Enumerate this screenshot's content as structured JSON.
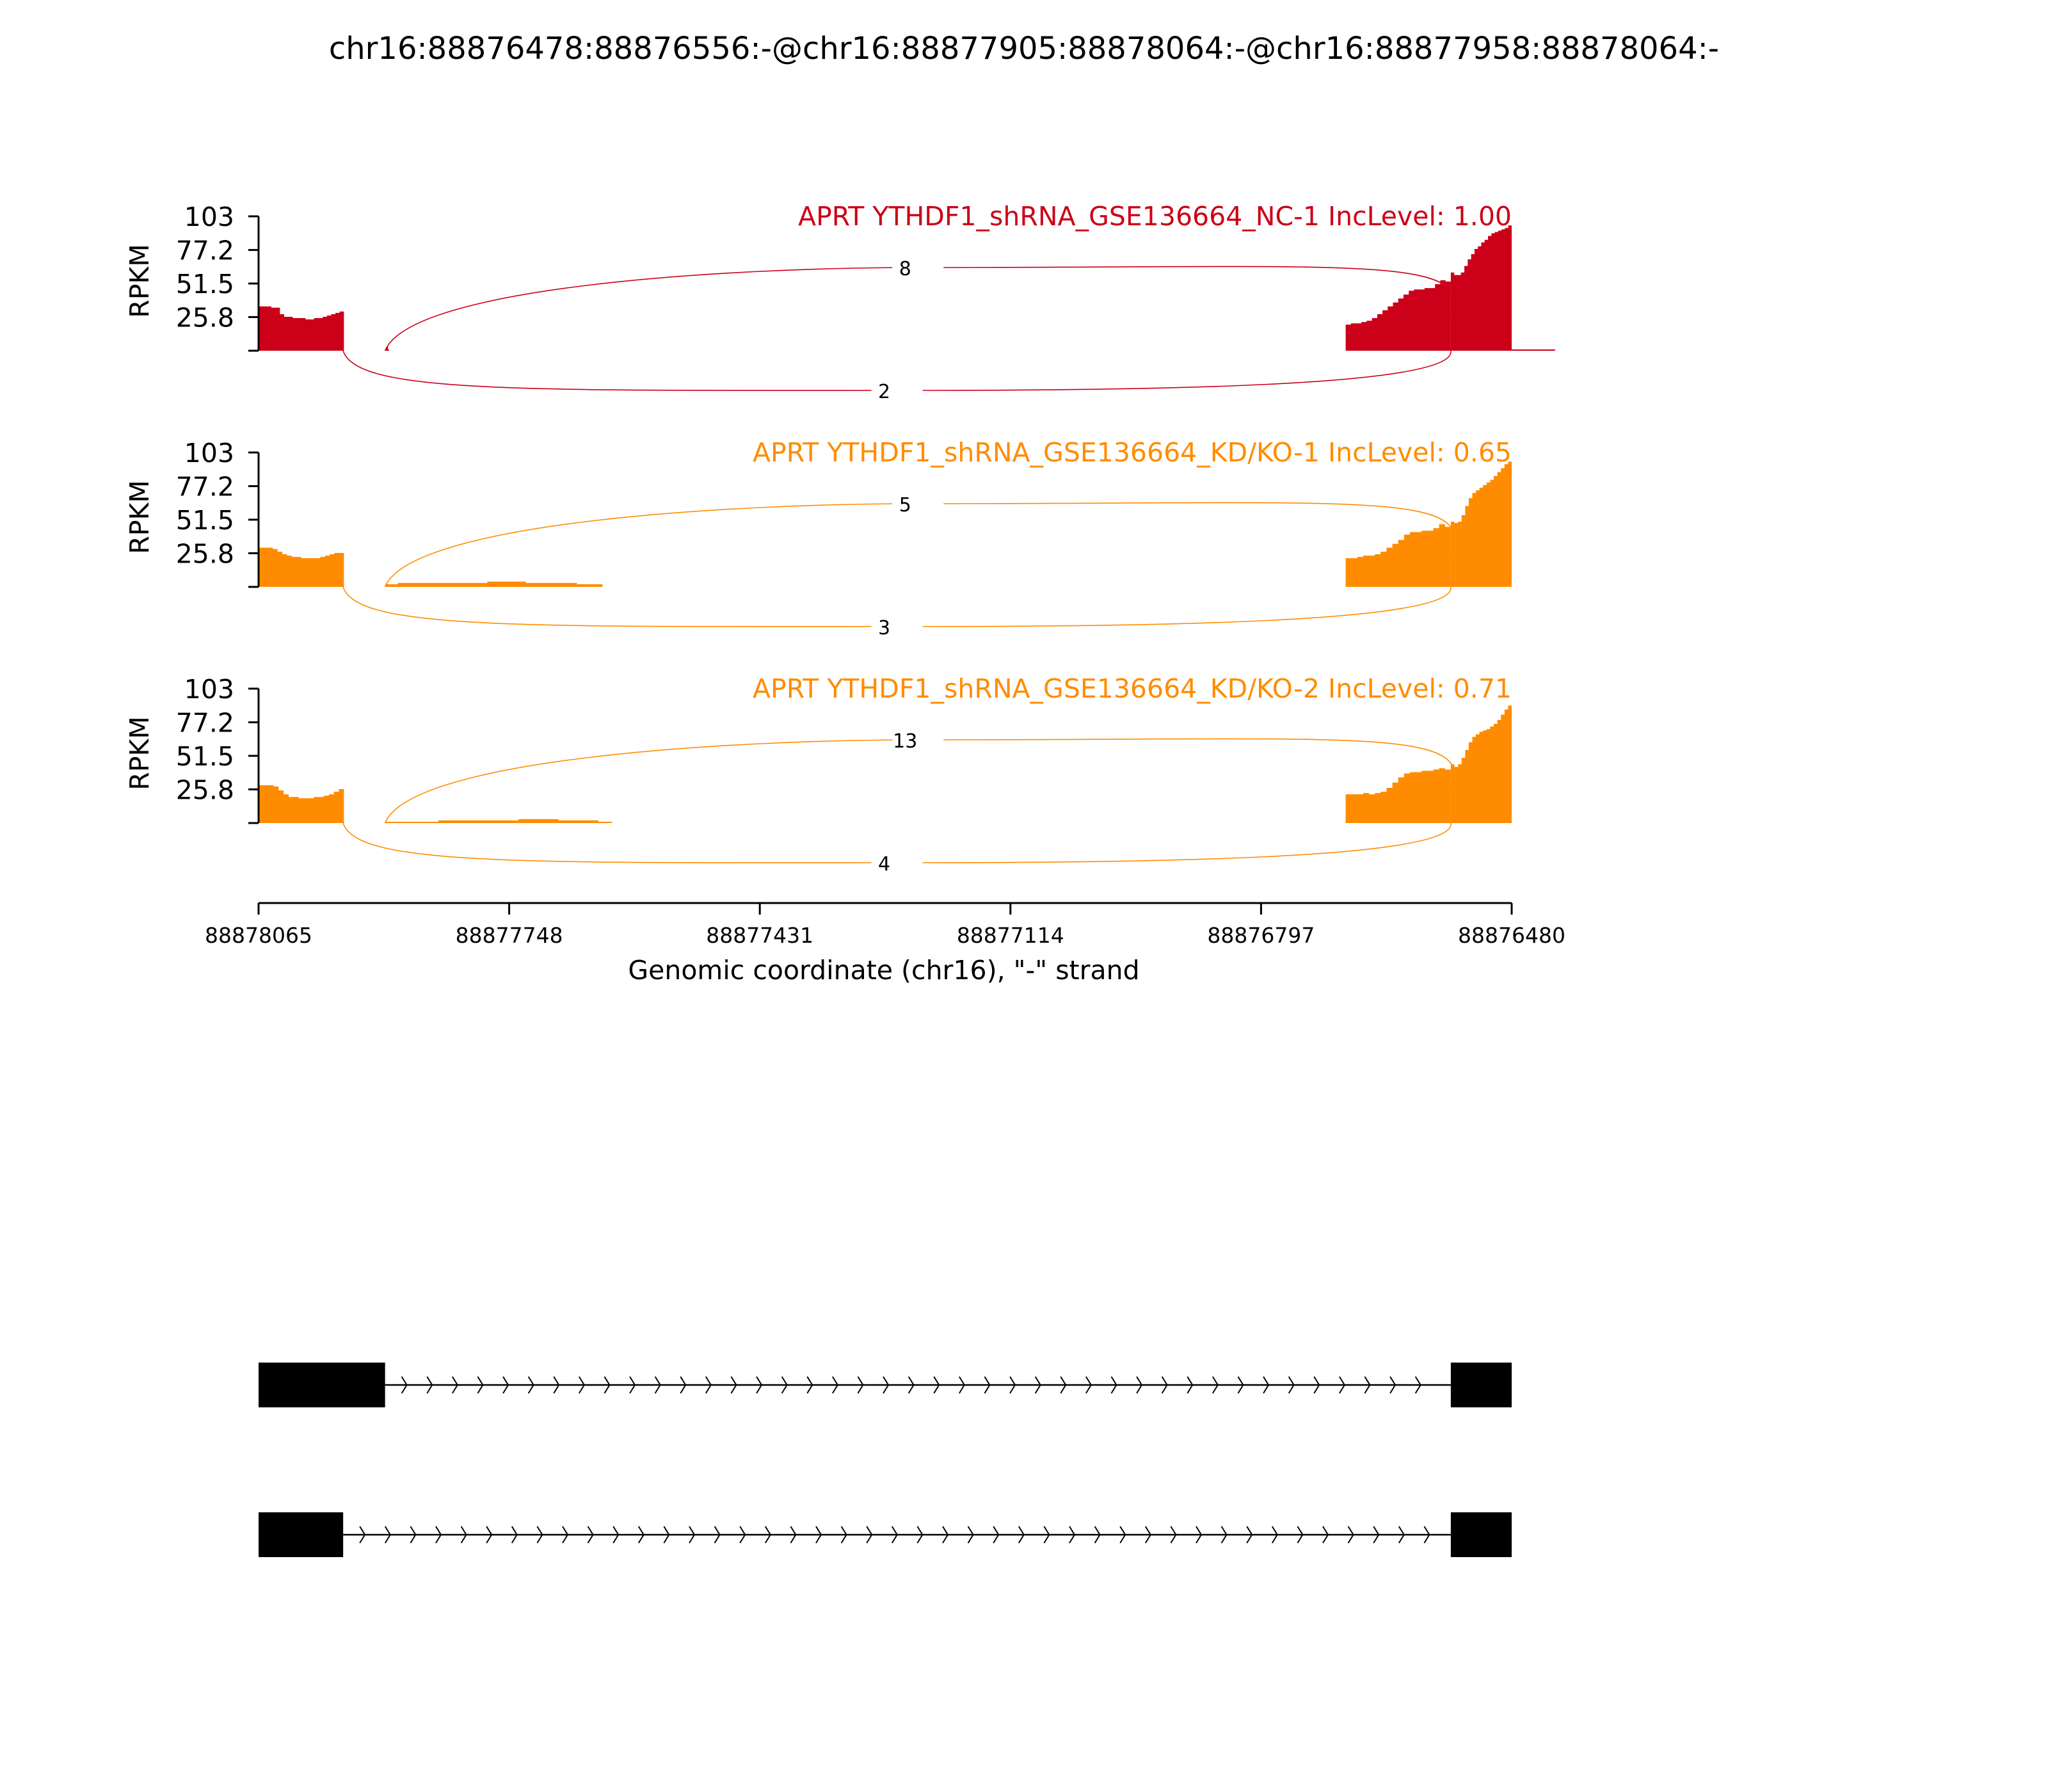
{
  "chart_data": {
    "type": "area",
    "title": "chr16:88876478:88876556:-@chr16:88877905:88878064:-@chr16:88877958:88878064:-",
    "xlabel": "Genomic coordinate (chr16), \"-\" strand",
    "x_range": [
      88878065,
      88876480
    ],
    "x_reversed": true,
    "x_ticks": [
      "88878065",
      "88877748",
      "88877431",
      "88877114",
      "88876797",
      "88876480"
    ],
    "ylabel": "RPKM",
    "y_range": [
      0,
      103
    ],
    "y_ticks": [
      "25.8",
      "51.5",
      "77.2",
      "103"
    ],
    "panels": [
      {
        "gene": "APRT",
        "sample": "YTHDF1_shRNA_GSE136664_NC-1",
        "inc_level_label": "IncLevel: 1.00",
        "color": "#CC0018",
        "segments": [
          {
            "start": 88878065,
            "end": 88877957,
            "values": [
              34,
              34,
              34,
              33,
              33,
              28,
              26,
              26,
              25,
              25,
              25,
              24,
              24,
              25,
              25,
              26,
              27,
              28,
              29,
              30
            ]
          },
          {
            "start": 88877905,
            "end": 88877900,
            "values": [
              1,
              2,
              3,
              1
            ]
          },
          {
            "start": 88876557,
            "end": 88876425,
            "values": [
              1,
              1,
              1,
              1,
              1,
              1,
              1,
              1
            ]
          },
          {
            "start": 88876690,
            "end": 88876557,
            "values": [
              20,
              21,
              21,
              22,
              23,
              25,
              28,
              31,
              34,
              37,
              40,
              43,
              46,
              47,
              47,
              48,
              48,
              51,
              54,
              53
            ]
          },
          {
            "start": 88876557,
            "end": 88876480,
            "values": [
              60,
              58,
              58,
              60,
              65,
              70,
              74,
              78,
              80,
              83,
              85,
              88,
              90,
              91,
              92,
              93,
              94,
              96
            ]
          }
        ],
        "junctions": [
          {
            "label": "8",
            "from": 88877905,
            "to": 88876557,
            "side": "above"
          },
          {
            "label": "2",
            "from": 88877958,
            "to": 88876557,
            "side": "below"
          }
        ]
      },
      {
        "gene": "APRT",
        "sample": "YTHDF1_shRNA_GSE136664_KD/KO-1",
        "inc_level_label": "IncLevel: 0.65",
        "color": "#FF8C00",
        "segments": [
          {
            "start": 88878065,
            "end": 88877957,
            "values": [
              30,
              30,
              30,
              29,
              27,
              25,
              24,
              23,
              23,
              22,
              22,
              22,
              22,
              23,
              24,
              25,
              26,
              26
            ]
          },
          {
            "start": 88877905,
            "end": 88877630,
            "values": [
              2,
              3,
              3,
              3,
              3,
              3,
              3,
              3,
              4,
              4,
              4,
              3,
              3,
              3,
              3,
              2,
              2
            ]
          },
          {
            "start": 88876690,
            "end": 88876557,
            "values": [
              22,
              22,
              23,
              24,
              24,
              25,
              27,
              30,
              33,
              36,
              40,
              42,
              42,
              43,
              43,
              45,
              48,
              46
            ]
          },
          {
            "start": 88876557,
            "end": 88876480,
            "values": [
              50,
              49,
              50,
              55,
              62,
              68,
              72,
              74,
              76,
              78,
              80,
              82,
              85,
              88,
              91,
              94,
              96
            ]
          }
        ],
        "junctions": [
          {
            "label": "5",
            "from": 88877905,
            "to": 88876557,
            "side": "above"
          },
          {
            "label": "3",
            "from": 88877958,
            "to": 88876557,
            "side": "below"
          }
        ]
      },
      {
        "gene": "APRT",
        "sample": "YTHDF1_shRNA_GSE136664_KD/KO-2",
        "inc_level_label": "IncLevel: 0.71",
        "color": "#FF8C00",
        "segments": [
          {
            "start": 88878065,
            "end": 88877957,
            "values": [
              29,
              29,
              29,
              28,
              25,
              22,
              20,
              20,
              19,
              19,
              19,
              20,
              20,
              21,
              22,
              24,
              26
            ]
          },
          {
            "start": 88877905,
            "end": 88877618,
            "values": [
              1,
              1,
              1,
              1,
              2,
              2,
              2,
              2,
              2,
              2,
              3,
              3,
              3,
              2,
              2,
              2,
              1
            ]
          },
          {
            "start": 88876690,
            "end": 88876557,
            "values": [
              22,
              22,
              22,
              23,
              22,
              23,
              24,
              27,
              31,
              35,
              38,
              39,
              39,
              40,
              40,
              41,
              42,
              41
            ]
          },
          {
            "start": 88876557,
            "end": 88876480,
            "values": [
              45,
              43,
              45,
              50,
              56,
              62,
              66,
              68,
              70,
              71,
              72,
              74,
              76,
              79,
              83,
              87,
              90
            ]
          }
        ],
        "junctions": [
          {
            "label": "13",
            "from": 88877905,
            "to": 88876557,
            "side": "above"
          },
          {
            "label": "4",
            "from": 88877958,
            "to": 88876557,
            "side": "below"
          }
        ]
      }
    ],
    "isoforms": [
      {
        "exons": [
          [
            88878065,
            88877905
          ],
          [
            88876557,
            88876480
          ]
        ]
      },
      {
        "exons": [
          [
            88878065,
            88877958
          ],
          [
            88876557,
            88876480
          ]
        ]
      }
    ]
  }
}
